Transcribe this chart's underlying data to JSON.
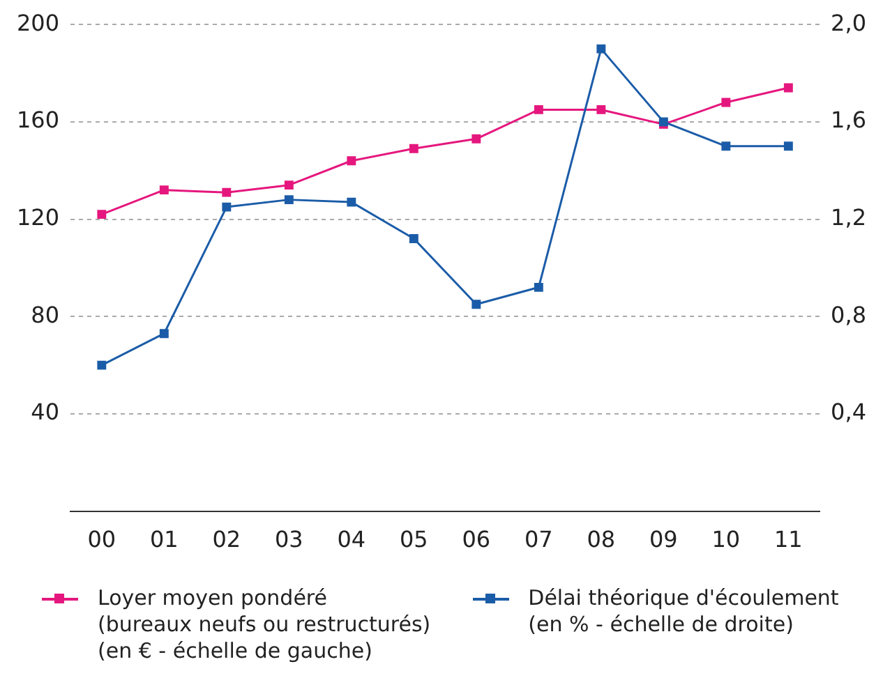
{
  "chart_data": {
    "type": "line",
    "categories": [
      "00",
      "01",
      "02",
      "03",
      "04",
      "05",
      "06",
      "07",
      "08",
      "09",
      "10",
      "11"
    ],
    "series": [
      {
        "name": "Loyer moyen pondéré\n(bureaux neufs ou restructurés)\n(en € - échelle de gauche)",
        "color": "#e5177e",
        "values": [
          122,
          132,
          131,
          134,
          144,
          149,
          153,
          165,
          165,
          159,
          168,
          174
        ]
      },
      {
        "name": "Délai théorique d'écoulement\n(en % - échelle de droite)",
        "color": "#1b5ca8",
        "axis": "y2",
        "values": [
          0.6,
          0.73,
          1.25,
          1.28,
          1.27,
          1.12,
          0.85,
          0.92,
          1.9,
          1.6,
          1.5,
          1.5
        ]
      }
    ],
    "ylim": [
      0,
      200
    ],
    "yticks": [
      40,
      80,
      120,
      160,
      200
    ],
    "y2lim": [
      0,
      2
    ],
    "y2ticks": [
      {
        "value": 0.4,
        "label": "0,4"
      },
      {
        "value": 0.8,
        "label": "0,8"
      },
      {
        "value": 1.2,
        "label": "1,2"
      },
      {
        "value": 1.6,
        "label": "1,6"
      },
      {
        "value": 2,
        "label": "2,0"
      }
    ],
    "grid": "y",
    "legend": "bottom",
    "marker": "square",
    "line_style": "solid"
  }
}
